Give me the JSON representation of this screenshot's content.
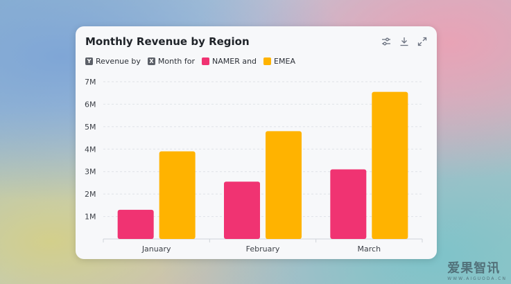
{
  "card": {
    "title": "Monthly Revenue by Region",
    "legend": {
      "y_badge": "Y",
      "y_text": "Revenue by",
      "x_badge": "X",
      "x_text": "Month for",
      "series1": "NAMER and",
      "series2": "EMEA"
    },
    "toolbar": {
      "settings_icon": "sliders-icon",
      "download_icon": "download-icon",
      "expand_icon": "expand-icon"
    }
  },
  "colors": {
    "namer": "#f03372",
    "emea": "#ffb300"
  },
  "watermark": {
    "main": "爱果智讯",
    "sub": "WWW.AIGUODA.CN"
  },
  "chart_data": {
    "type": "bar",
    "title": "Monthly Revenue by Region",
    "categories": [
      "January",
      "February",
      "March"
    ],
    "series": [
      {
        "name": "NAMER",
        "values": [
          1300000,
          2550000,
          3100000
        ]
      },
      {
        "name": "EMEA",
        "values": [
          3900000,
          4800000,
          6550000
        ]
      }
    ],
    "ylim": [
      0,
      7000000
    ],
    "yticks": [
      {
        "value": 1000000,
        "label": "1M"
      },
      {
        "value": 2000000,
        "label": "2M"
      },
      {
        "value": 3000000,
        "label": "3M"
      },
      {
        "value": 4000000,
        "label": "4M"
      },
      {
        "value": 5000000,
        "label": "5M"
      },
      {
        "value": 6000000,
        "label": "6M"
      },
      {
        "value": 7000000,
        "label": "7M"
      }
    ],
    "grid": true,
    "legend_position": "top-left"
  }
}
